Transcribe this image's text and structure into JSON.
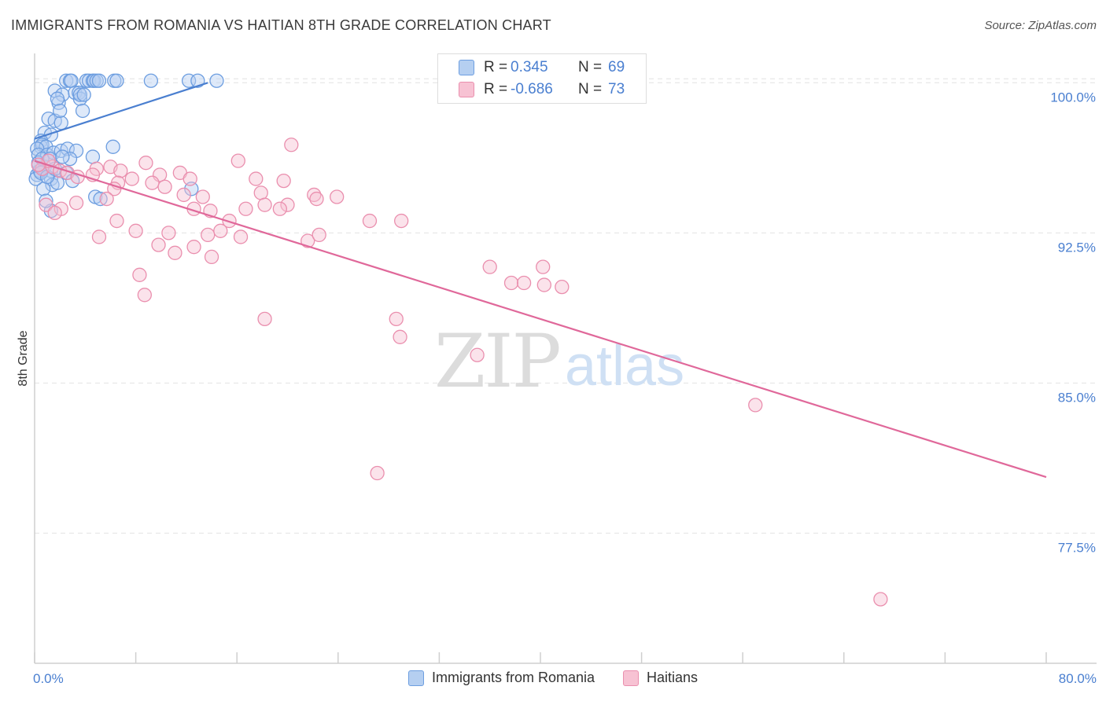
{
  "header": {
    "title": "IMMIGRANTS FROM ROMANIA VS HAITIAN 8TH GRADE CORRELATION CHART",
    "source": "Source: ZipAtlas.com"
  },
  "watermark": {
    "zip": "ZIP",
    "atlas": "atlas"
  },
  "stats": [
    {
      "r_label": "R =",
      "r_value": "0.345",
      "n_label": "N =",
      "n_value": "69",
      "color": "#4a7fd0",
      "fill": "#b5cff1",
      "stroke": "#6d9ee0"
    },
    {
      "r_label": "R =",
      "r_value": "-0.686",
      "n_label": "N =",
      "n_value": "73",
      "color": "#4a7fd0",
      "fill": "#f7c2d3",
      "stroke": "#ea8fae"
    }
  ],
  "legend": [
    {
      "label": "Immigrants from Romania",
      "fill": "#b5cff1",
      "stroke": "#6d9ee0"
    },
    {
      "label": "Haitians",
      "fill": "#f7c2d3",
      "stroke": "#ea8fae"
    }
  ],
  "chart_data": {
    "type": "scatter",
    "title": "IMMIGRANTS FROM ROMANIA VS HAITIAN 8TH GRADE CORRELATION CHART",
    "xlabel": "",
    "ylabel": "8th Grade",
    "xlim": [
      0,
      80
    ],
    "ylim": [
      71,
      101.7
    ],
    "x_tick_labels": [
      "0.0%",
      "80.0%"
    ],
    "y_ticks": [
      100.0,
      92.5,
      85.0,
      77.5
    ],
    "y_tick_labels": [
      "100.0%",
      "92.5%",
      "85.0%",
      "77.5%"
    ],
    "grid": true,
    "legend_position": "bottom",
    "series": [
      {
        "name": "Immigrants from Romania",
        "color": "#4a7fd0",
        "trend": {
          "x": [
            0,
            13.7
          ],
          "y": [
            97.2,
            100.0
          ]
        },
        "points": [
          [
            2.5,
            100.1
          ],
          [
            2.8,
            100.1
          ],
          [
            2.9,
            100.1
          ],
          [
            4.1,
            100.1
          ],
          [
            4.3,
            100.1
          ],
          [
            4.6,
            100.1
          ],
          [
            4.7,
            100.1
          ],
          [
            4.9,
            100.1
          ],
          [
            5.1,
            100.1
          ],
          [
            6.3,
            100.1
          ],
          [
            6.5,
            100.1
          ],
          [
            9.2,
            100.1
          ],
          [
            12.2,
            100.1
          ],
          [
            12.9,
            100.1
          ],
          [
            14.4,
            100.1
          ],
          [
            1.6,
            99.6
          ],
          [
            2.2,
            99.4
          ],
          [
            3.2,
            99.5
          ],
          [
            3.5,
            99.5
          ],
          [
            3.6,
            99.2
          ],
          [
            1.9,
            99.0
          ],
          [
            1.8,
            99.2
          ],
          [
            3.6,
            99.4
          ],
          [
            3.9,
            99.4
          ],
          [
            1.1,
            98.2
          ],
          [
            1.6,
            98.1
          ],
          [
            2.1,
            98.0
          ],
          [
            2.0,
            98.6
          ],
          [
            3.8,
            98.6
          ],
          [
            0.8,
            97.5
          ],
          [
            1.3,
            97.4
          ],
          [
            0.5,
            97.1
          ],
          [
            0.5,
            96.8
          ],
          [
            0.6,
            96.9
          ],
          [
            0.9,
            96.8
          ],
          [
            0.2,
            96.7
          ],
          [
            0.3,
            96.4
          ],
          [
            1.0,
            96.4
          ],
          [
            1.5,
            96.5
          ],
          [
            2.1,
            96.6
          ],
          [
            2.6,
            96.7
          ],
          [
            3.3,
            96.6
          ],
          [
            6.2,
            96.8
          ],
          [
            4.6,
            96.3
          ],
          [
            2.8,
            96.2
          ],
          [
            0.3,
            96.0
          ],
          [
            0.8,
            95.8
          ],
          [
            1.3,
            95.6
          ],
          [
            0.2,
            95.4
          ],
          [
            1.3,
            95.2
          ],
          [
            2.5,
            95.5
          ],
          [
            3.0,
            95.1
          ],
          [
            1.4,
            94.9
          ],
          [
            0.7,
            94.7
          ],
          [
            0.4,
            95.6
          ],
          [
            0.1,
            95.2
          ],
          [
            0.3,
            95.9
          ],
          [
            0.6,
            96.2
          ],
          [
            1.2,
            96.2
          ],
          [
            2.2,
            96.3
          ],
          [
            4.8,
            94.3
          ],
          [
            5.2,
            94.2
          ],
          [
            12.4,
            94.7
          ],
          [
            1.3,
            93.6
          ],
          [
            0.9,
            94.1
          ],
          [
            1.8,
            95.0
          ],
          [
            0.5,
            95.5
          ],
          [
            1.0,
            95.3
          ],
          [
            1.6,
            95.7
          ]
        ]
      },
      {
        "name": "Haitians",
        "color": "#e0689a",
        "trend": {
          "x": [
            0,
            80
          ],
          "y": [
            96.1,
            80.3
          ]
        },
        "points": [
          [
            32.6,
            100.0
          ],
          [
            20.3,
            96.9
          ],
          [
            8.8,
            96.0
          ],
          [
            16.1,
            96.1
          ],
          [
            0.6,
            95.7
          ],
          [
            1.4,
            95.8
          ],
          [
            2.0,
            95.6
          ],
          [
            4.9,
            95.7
          ],
          [
            6.0,
            95.8
          ],
          [
            6.8,
            95.6
          ],
          [
            9.9,
            95.4
          ],
          [
            11.5,
            95.5
          ],
          [
            12.3,
            95.2
          ],
          [
            17.5,
            95.2
          ],
          [
            19.7,
            95.1
          ],
          [
            7.7,
            95.2
          ],
          [
            6.6,
            95.0
          ],
          [
            9.3,
            95.0
          ],
          [
            6.3,
            94.7
          ],
          [
            10.3,
            94.8
          ],
          [
            11.8,
            94.4
          ],
          [
            13.3,
            94.3
          ],
          [
            17.9,
            94.5
          ],
          [
            20.0,
            93.9
          ],
          [
            22.1,
            94.4
          ],
          [
            23.9,
            94.3
          ],
          [
            22.3,
            94.2
          ],
          [
            5.7,
            94.2
          ],
          [
            0.9,
            93.9
          ],
          [
            2.1,
            93.7
          ],
          [
            3.3,
            94.0
          ],
          [
            1.6,
            93.5
          ],
          [
            16.7,
            93.7
          ],
          [
            18.2,
            93.9
          ],
          [
            12.6,
            93.7
          ],
          [
            13.9,
            93.6
          ],
          [
            15.4,
            93.1
          ],
          [
            19.4,
            93.7
          ],
          [
            6.5,
            93.1
          ],
          [
            8.0,
            92.6
          ],
          [
            10.6,
            92.5
          ],
          [
            13.7,
            92.4
          ],
          [
            14.7,
            92.6
          ],
          [
            16.3,
            92.3
          ],
          [
            21.6,
            92.1
          ],
          [
            22.5,
            92.4
          ],
          [
            5.1,
            92.3
          ],
          [
            9.8,
            91.9
          ],
          [
            11.1,
            91.5
          ],
          [
            12.6,
            91.8
          ],
          [
            14.0,
            91.3
          ],
          [
            26.5,
            93.1
          ],
          [
            29.0,
            93.1
          ],
          [
            8.3,
            90.4
          ],
          [
            8.7,
            89.4
          ],
          [
            18.2,
            88.2
          ],
          [
            28.6,
            88.2
          ],
          [
            28.9,
            87.3
          ],
          [
            36.0,
            90.8
          ],
          [
            37.7,
            90.0
          ],
          [
            38.7,
            90.0
          ],
          [
            40.2,
            90.8
          ],
          [
            40.3,
            89.9
          ],
          [
            41.7,
            89.8
          ],
          [
            35.0,
            86.4
          ],
          [
            27.1,
            80.5
          ],
          [
            57.0,
            83.9
          ],
          [
            66.9,
            74.2
          ],
          [
            2.6,
            95.5
          ],
          [
            3.4,
            95.3
          ],
          [
            4.6,
            95.4
          ],
          [
            1.1,
            96.1
          ],
          [
            0.3,
            95.9
          ]
        ]
      }
    ]
  }
}
